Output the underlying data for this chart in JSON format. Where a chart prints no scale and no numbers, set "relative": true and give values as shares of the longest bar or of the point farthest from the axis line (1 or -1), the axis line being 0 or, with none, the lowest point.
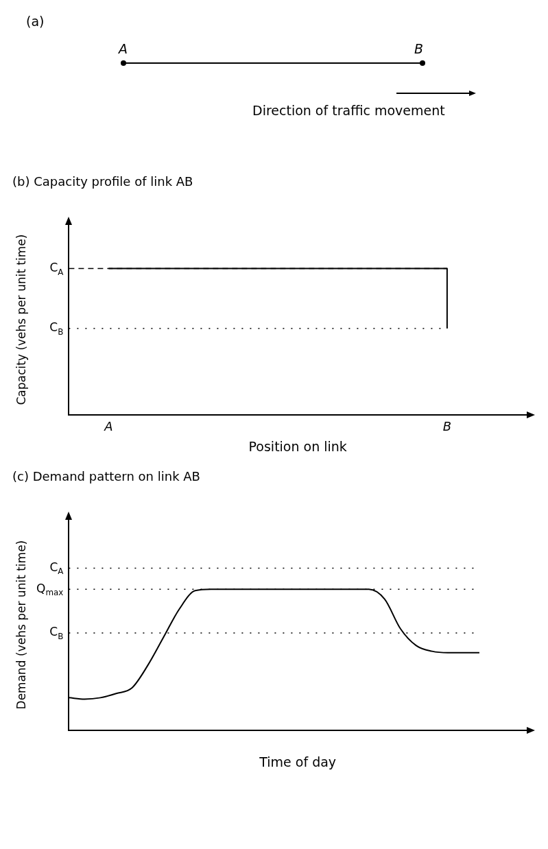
{
  "chart_data": [
    {
      "type": "other",
      "title": "(a)",
      "annotations": [
        "A",
        "B",
        "Direction of traffic movement"
      ]
    },
    {
      "type": "step",
      "title": "(b) Capacity profile of link AB",
      "xlabel": "Position on link",
      "ylabel": "Capacity (vehs per unit time)",
      "relative": true,
      "grid": false,
      "legend": false,
      "marker": "none",
      "categories": [
        null,
        null,
        "A",
        null,
        null,
        null,
        null,
        null,
        null,
        null,
        null,
        null,
        null,
        null,
        null,
        null,
        null,
        null,
        null,
        "B",
        null,
        null,
        null,
        null
      ],
      "series": [
        {
          "color": "#000000",
          "values": [
            null,
            null,
            1,
            1,
            1,
            1,
            1,
            1,
            1,
            1,
            1,
            1,
            1,
            1,
            1,
            1,
            1,
            1,
            1,
            0.59,
            null,
            null,
            null,
            null
          ]
        }
      ],
      "ref_lines": [
        {
          "axis": "y",
          "value": 1,
          "label": "C$_{A}$",
          "line_style": "dashed",
          "color": "#000000"
        },
        {
          "axis": "y",
          "value": 0.59,
          "label": "C$_{B}$",
          "line_style": "dotted",
          "color": "#000000"
        }
      ]
    },
    {
      "type": "line",
      "title": "(c) Demand pattern on link AB",
      "xlabel": "Time of day",
      "ylabel": "Demand (vehs per unit time)",
      "relative": true,
      "grid": false,
      "legend": false,
      "marker": "none",
      "categories": [
        null,
        null,
        null,
        null,
        null,
        null,
        null,
        null,
        null,
        null,
        null,
        null,
        null,
        null,
        null,
        null,
        null,
        null,
        null,
        null,
        null,
        null,
        null,
        null,
        null,
        null,
        null,
        null,
        null,
        null
      ],
      "series": [
        {
          "color": "#000000",
          "values": [
            0.23,
            0.22,
            0.23,
            0.26,
            0.3,
            0.46,
            0.66,
            0.86,
            0.99,
            1,
            1,
            1,
            1,
            1,
            1,
            1,
            1,
            1,
            1,
            1,
            0.93,
            0.72,
            0.6,
            0.56,
            0.55,
            0.55,
            0.55,
            null,
            null,
            null
          ]
        }
      ],
      "ref_lines": [
        {
          "axis": "y",
          "value": 1.15,
          "label": "C$_{A}$",
          "line_style": "dotted",
          "color": "#000000"
        },
        {
          "axis": "y",
          "value": 1,
          "label": "Q$_{max}$",
          "line_style": "dotted",
          "color": "#000000"
        },
        {
          "axis": "y",
          "value": 0.69,
          "label": "C$_{B}$",
          "line_style": "dotted",
          "color": "#000000"
        }
      ]
    }
  ]
}
